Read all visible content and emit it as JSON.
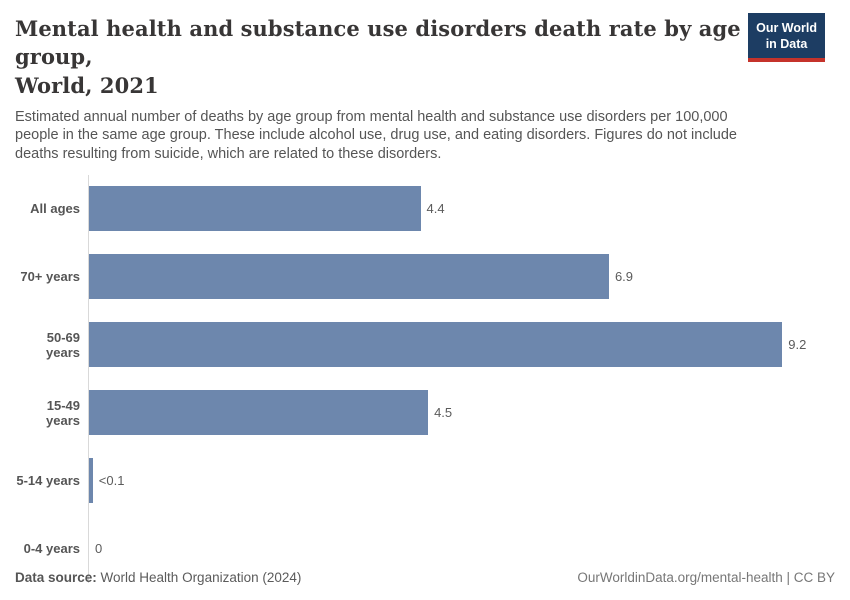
{
  "header": {
    "title_line1": "Mental health and substance use disorders death rate by age group,",
    "title_line2": "World, 2021",
    "subtitle": "Estimated annual number of deaths by age group from mental health and substance use disorders per 100,000 people in the same age group. These include alcohol use, drug use, and eating disorders. Figures do not include deaths resulting from suicide, which are related to these disorders."
  },
  "logo": {
    "line1": "Our World",
    "line2": "in Data",
    "bg_color": "#1d3d63",
    "accent_color": "#c5332b"
  },
  "chart_data": {
    "type": "bar",
    "orientation": "horizontal",
    "title": "Mental health and substance use disorders death rate by age group, World, 2021",
    "categories": [
      "All ages",
      "70+ years",
      "50-69 years",
      "15-49 years",
      "5-14 years",
      "0-4 years"
    ],
    "values": [
      4.4,
      6.9,
      9.2,
      4.5,
      0.05,
      0
    ],
    "value_labels": [
      "4.4",
      "6.9",
      "9.2",
      "4.5",
      "<0.1",
      "0"
    ],
    "xlim": [
      0,
      9.9
    ],
    "bar_color": "#6d87ad",
    "grid": false,
    "legend": false
  },
  "footer": {
    "source_label": "Data source:",
    "source_text": " World Health Organization (2024)",
    "credit_text": "OurWorldinData.org/mental-health | CC BY"
  }
}
